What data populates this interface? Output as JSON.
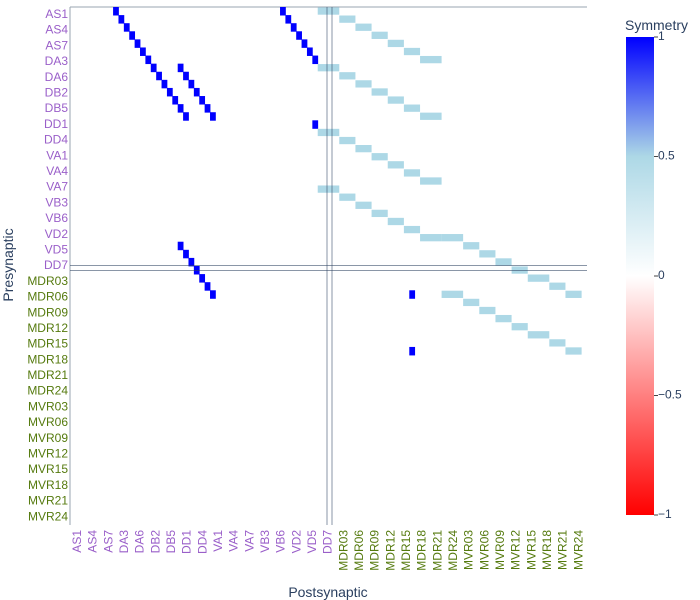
{
  "chart_data": {
    "type": "heatmap",
    "xlabel": "Postsynaptic",
    "ylabel": "Presynaptic",
    "colorbar": {
      "title": "Symmetry",
      "range": [
        -1,
        1
      ],
      "ticks": [
        1,
        0.5,
        0,
        -0.5,
        -1
      ],
      "tick_labels": [
        "1",
        "0.5",
        "0",
        "−0.5",
        "−1"
      ],
      "colorscale": [
        [
          0,
          "#ff0000"
        ],
        [
          0.5,
          "#ffffff"
        ],
        [
          0.75,
          "#add8e6"
        ],
        [
          1,
          "#0000ff"
        ]
      ]
    },
    "colors": {
      "group_a_label": "#9a5fc9",
      "group_b_label": "#557a0e",
      "axis_title": "#2a3f5f",
      "separator": "#2a3f5f",
      "high": "#0000ff",
      "mid": "#add8e6"
    },
    "x_categories": [
      "AS1",
      "AS4",
      "AS7",
      "DA3",
      "DA6",
      "DB2",
      "DB5",
      "DD1",
      "DD4",
      "VA1",
      "VA4",
      "VA7",
      "VB3",
      "VB6",
      "VD2",
      "VD5",
      "DD7",
      "MDR03",
      "MDR06",
      "MDR09",
      "MDR12",
      "MDR15",
      "MDR18",
      "MDR21",
      "MDR24",
      "MVR03",
      "MVR06",
      "MVR09",
      "MVR12",
      "MVR15",
      "MVR18",
      "MVR21",
      "MVR24"
    ],
    "y_categories": [
      "AS1",
      "AS4",
      "AS7",
      "DA3",
      "DA6",
      "DB2",
      "DB5",
      "DD1",
      "DD4",
      "VA1",
      "VA4",
      "VA7",
      "VB3",
      "VB6",
      "VD2",
      "VD5",
      "DD7",
      "MDR03",
      "MDR06",
      "MDR09",
      "MDR12",
      "MDR15",
      "MDR18",
      "MDR21",
      "MDR24",
      "MVR03",
      "MVR06",
      "MVR09",
      "MVR12",
      "MVR15",
      "MVR18",
      "MVR21",
      "MVR24"
    ],
    "group_a_count": 17,
    "cell_rows": 64,
    "cell_cols": 64,
    "cells": [
      {
        "r": 0,
        "c": 8,
        "v": 1
      },
      {
        "r": 1,
        "c": 9,
        "v": 1
      },
      {
        "r": 2,
        "c": 10,
        "v": 1
      },
      {
        "r": 3,
        "c": 11,
        "v": 1
      },
      {
        "r": 4,
        "c": 12,
        "v": 1
      },
      {
        "r": 5,
        "c": 13,
        "v": 1
      },
      {
        "r": 6,
        "c": 14,
        "v": 1
      },
      {
        "r": 7,
        "c": 15,
        "v": 1
      },
      {
        "r": 8,
        "c": 16,
        "v": 1
      },
      {
        "r": 9,
        "c": 17,
        "v": 1
      },
      {
        "r": 10,
        "c": 18,
        "v": 1
      },
      {
        "r": 11,
        "c": 19,
        "v": 1
      },
      {
        "r": 12,
        "c": 20,
        "v": 1
      },
      {
        "r": 13,
        "c": 21,
        "v": 1
      },
      {
        "r": 7,
        "c": 20,
        "v": 1
      },
      {
        "r": 8,
        "c": 21,
        "v": 1
      },
      {
        "r": 9,
        "c": 22,
        "v": 1
      },
      {
        "r": 10,
        "c": 23,
        "v": 1
      },
      {
        "r": 11,
        "c": 24,
        "v": 1
      },
      {
        "r": 12,
        "c": 25,
        "v": 1
      },
      {
        "r": 13,
        "c": 26,
        "v": 1
      },
      {
        "r": 0,
        "c": 39,
        "v": 1
      },
      {
        "r": 1,
        "c": 40,
        "v": 1
      },
      {
        "r": 2,
        "c": 41,
        "v": 1
      },
      {
        "r": 3,
        "c": 42,
        "v": 1
      },
      {
        "r": 4,
        "c": 43,
        "v": 1
      },
      {
        "r": 5,
        "c": 44,
        "v": 1
      },
      {
        "r": 6,
        "c": 45,
        "v": 1
      },
      {
        "r": 14,
        "c": 45,
        "v": 1
      },
      {
        "r": 29,
        "c": 20,
        "v": 1
      },
      {
        "r": 30,
        "c": 21,
        "v": 1
      },
      {
        "r": 31,
        "c": 22,
        "v": 1
      },
      {
        "r": 32,
        "c": 23,
        "v": 1
      },
      {
        "r": 33,
        "c": 24,
        "v": 1
      },
      {
        "r": 34,
        "c": 25,
        "v": 1
      },
      {
        "r": 35,
        "c": 26,
        "v": 1
      },
      {
        "r": 35,
        "c": 63,
        "v": 1
      },
      {
        "r": 42,
        "c": 63,
        "v": 1
      }
    ],
    "mid_bars": [
      {
        "r": 0,
        "c0": 46,
        "len": 4,
        "v": 0.5
      },
      {
        "r": 1,
        "c0": 50,
        "len": 3,
        "v": 0.5
      },
      {
        "r": 2,
        "c0": 53,
        "len": 3,
        "v": 0.5
      },
      {
        "r": 3,
        "c0": 56,
        "len": 3,
        "v": 0.5
      },
      {
        "r": 4,
        "c0": 59,
        "len": 3,
        "v": 0.5
      },
      {
        "r": 5,
        "c0": 62,
        "len": 3,
        "v": 0.5
      },
      {
        "r": 6,
        "c0": 65,
        "len": 4,
        "v": 0.5
      },
      {
        "r": 7,
        "c0": 46,
        "len": 4,
        "v": 0.5
      },
      {
        "r": 8,
        "c0": 50,
        "len": 3,
        "v": 0.5
      },
      {
        "r": 9,
        "c0": 53,
        "len": 3,
        "v": 0.5
      },
      {
        "r": 10,
        "c0": 56,
        "len": 3,
        "v": 0.5
      },
      {
        "r": 11,
        "c0": 59,
        "len": 3,
        "v": 0.5
      },
      {
        "r": 12,
        "c0": 62,
        "len": 3,
        "v": 0.5
      },
      {
        "r": 13,
        "c0": 65,
        "len": 4,
        "v": 0.5
      },
      {
        "r": 15,
        "c0": 46,
        "len": 4,
        "v": 0.5
      },
      {
        "r": 16,
        "c0": 50,
        "len": 3,
        "v": 0.5
      },
      {
        "r": 17,
        "c0": 53,
        "len": 3,
        "v": 0.5
      },
      {
        "r": 18,
        "c0": 56,
        "len": 3,
        "v": 0.5
      },
      {
        "r": 19,
        "c0": 59,
        "len": 3,
        "v": 0.5
      },
      {
        "r": 20,
        "c0": 62,
        "len": 3,
        "v": 0.5
      },
      {
        "r": 21,
        "c0": 65,
        "len": 4,
        "v": 0.5
      },
      {
        "r": 22,
        "c0": 46,
        "len": 4,
        "v": 0.5
      },
      {
        "r": 23,
        "c0": 50,
        "len": 3,
        "v": 0.5
      },
      {
        "r": 24,
        "c0": 53,
        "len": 3,
        "v": 0.5
      },
      {
        "r": 25,
        "c0": 56,
        "len": 3,
        "v": 0.5
      },
      {
        "r": 26,
        "c0": 59,
        "len": 3,
        "v": 0.5
      },
      {
        "r": 27,
        "c0": 62,
        "len": 3,
        "v": 0.5
      },
      {
        "r": 28,
        "c0": 65,
        "len": 4,
        "v": 0.5
      },
      {
        "r": 28,
        "c0": 69,
        "len": 4,
        "v": 0.5
      },
      {
        "r": 29,
        "c0": 73,
        "len": 3,
        "v": 0.5
      },
      {
        "r": 30,
        "c0": 76,
        "len": 3,
        "v": 0.5
      },
      {
        "r": 31,
        "c0": 79,
        "len": 3,
        "v": 0.5
      },
      {
        "r": 32,
        "c0": 82,
        "len": 3,
        "v": 0.5
      },
      {
        "r": 33,
        "c0": 85,
        "len": 4,
        "v": 0.5
      },
      {
        "r": 34,
        "c0": 89,
        "len": 3,
        "v": 0.5
      },
      {
        "r": 35,
        "c0": 92,
        "len": 3,
        "v": 0.5
      },
      {
        "r": 35,
        "c0": 69,
        "len": 4,
        "v": 0.5
      },
      {
        "r": 36,
        "c0": 73,
        "len": 3,
        "v": 0.5
      },
      {
        "r": 37,
        "c0": 76,
        "len": 3,
        "v": 0.5
      },
      {
        "r": 38,
        "c0": 79,
        "len": 3,
        "v": 0.5
      },
      {
        "r": 39,
        "c0": 82,
        "len": 3,
        "v": 0.5
      },
      {
        "r": 40,
        "c0": 85,
        "len": 4,
        "v": 0.5
      },
      {
        "r": 41,
        "c0": 89,
        "len": 3,
        "v": 0.5
      },
      {
        "r": 42,
        "c0": 92,
        "len": 3,
        "v": 0.5
      }
    ]
  }
}
